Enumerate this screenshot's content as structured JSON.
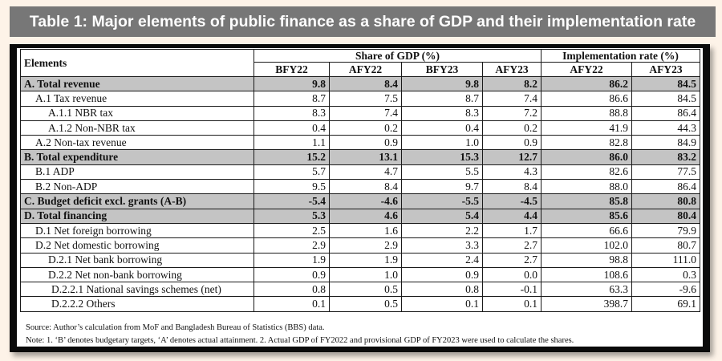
{
  "title": "Table 1: Major elements of public finance as a share of GDP and their implementation rate",
  "table": {
    "elements_header": "Elements",
    "group_headers": [
      "Share of GDP (%)",
      "Implementation rate (%)"
    ],
    "sub_headers": [
      "BFY22",
      "AFY22",
      "BFY23",
      "AFY23",
      "AFY22",
      "AFY23"
    ],
    "rows": [
      {
        "label": "A. Total revenue",
        "values": [
          "9.8",
          "8.4",
          "9.8",
          "8.2",
          "86.2",
          "84.5"
        ]
      },
      {
        "label": "A.1 Tax revenue",
        "values": [
          "8.7",
          "7.5",
          "8.7",
          "7.4",
          "86.6",
          "84.5"
        ]
      },
      {
        "label": "A.1.1 NBR tax",
        "values": [
          "8.3",
          "7.4",
          "8.3",
          "7.2",
          "88.8",
          "86.4"
        ]
      },
      {
        "label": "A.1.2 Non-NBR tax",
        "values": [
          "0.4",
          "0.2",
          "0.4",
          "0.2",
          "41.9",
          "44.3"
        ]
      },
      {
        "label": "A.2 Non-tax revenue",
        "values": [
          "1.1",
          "0.9",
          "1.0",
          "0.9",
          "82.8",
          "84.9"
        ]
      },
      {
        "label": "B. Total expenditure",
        "values": [
          "15.2",
          "13.1",
          "15.3",
          "12.7",
          "86.0",
          "83.2"
        ]
      },
      {
        "label": "B.1 ADP",
        "values": [
          "5.7",
          "4.7",
          "5.5",
          "4.3",
          "82.6",
          "77.5"
        ]
      },
      {
        "label": "B.2 Non-ADP",
        "values": [
          "9.5",
          "8.4",
          "9.7",
          "8.4",
          "88.0",
          "86.4"
        ]
      },
      {
        "label": "C. Budget deficit excl. grants (A-B)",
        "values": [
          "-5.4",
          "-4.6",
          "-5.5",
          "-4.5",
          "85.8",
          "80.8"
        ]
      },
      {
        "label": "D. Total financing",
        "values": [
          "5.3",
          "4.6",
          "5.4",
          "4.4",
          "85.6",
          "80.4"
        ]
      },
      {
        "label": "D.1 Net foreign borrowing",
        "values": [
          "2.5",
          "1.6",
          "2.2",
          "1.7",
          "66.6",
          "79.9"
        ]
      },
      {
        "label": "D.2 Net domestic borrowing",
        "values": [
          "2.9",
          "2.9",
          "3.3",
          "2.7",
          "102.0",
          "80.7"
        ]
      },
      {
        "label": "D.2.1 Net bank borrowing",
        "values": [
          "1.9",
          "1.9",
          "2.4",
          "2.7",
          "98.8",
          "111.0"
        ]
      },
      {
        "label": "D.2.2 Net non-bank borrowing",
        "values": [
          "0.9",
          "1.0",
          "0.9",
          "0.0",
          "108.6",
          "0.3"
        ]
      },
      {
        "label": "D.2.2.1 National savings schemes (net)",
        "values": [
          "0.8",
          "0.5",
          "0.8",
          "-0.1",
          "63.3",
          "-9.6"
        ]
      },
      {
        "label": "D.2.2.2 Others",
        "values": [
          "0.1",
          "0.5",
          "0.1",
          "0.1",
          "398.7",
          "69.1"
        ]
      }
    ]
  },
  "source_note": "Source: Author’s calculation from MoF and Bangladesh Bureau of Statistics (BBS) data.",
  "note": "Note: 1. ‘B’ denotes budgetary targets, ‘A’ denotes actual attainment. 2. Actual GDP of FY2022 and provisional GDP of FY2023 were used to calculate the shares."
}
